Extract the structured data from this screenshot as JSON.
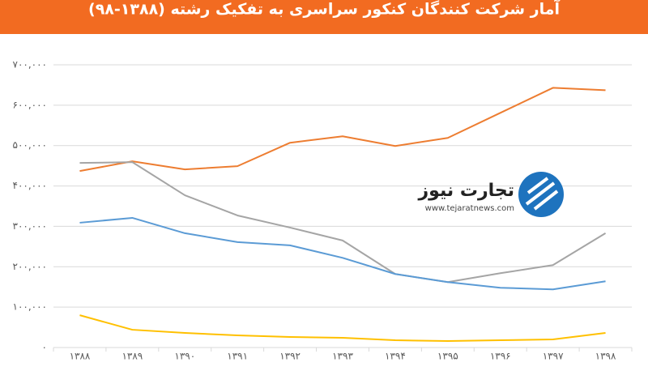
{
  "chart_data": {
    "type": "line",
    "title": "آمار شرکت کنندگان کنکور سراسری به تفکیک رشته (۱۳۸۸-۹۸)",
    "watermark": {
      "brand": "تجارت نیوز",
      "url": "www.tejaratnews.com"
    },
    "categories": [
      "۱۳۸۸",
      "۱۳۸۹",
      "۱۳۹۰",
      "۱۳۹۱",
      "۱۳۹۲",
      "۱۳۹۳",
      "۱۳۹۴",
      "۱۳۹۵",
      "۱۳۹۶",
      "۱۳۹۷",
      "۱۳۹۸"
    ],
    "series": [
      {
        "color": "#ed7d31",
        "values": [
          437000,
          461000,
          441000,
          449000,
          507000,
          523000,
          499000,
          519000,
          581000,
          643000,
          637000
        ]
      },
      {
        "color": "#a5a5a5",
        "values": [
          457000,
          459000,
          377000,
          327000,
          297000,
          265000,
          182000,
          162000,
          184000,
          204000,
          283000
        ]
      },
      {
        "color": "#5b9bd5",
        "values": [
          309000,
          321000,
          283000,
          261000,
          253000,
          222000,
          182000,
          162000,
          148000,
          144000,
          164000
        ]
      },
      {
        "color": "#ffc000",
        "values": [
          80000,
          44000,
          36000,
          30000,
          26000,
          24000,
          18000,
          16000,
          18000,
          20000,
          36000
        ]
      }
    ],
    "ylim": [
      0,
      700000
    ],
    "yticks": [
      {
        "value": 0,
        "label": "۰"
      },
      {
        "value": 100000,
        "label": "۱۰۰,۰۰۰"
      },
      {
        "value": 200000,
        "label": "۲۰۰,۰۰۰"
      },
      {
        "value": 300000,
        "label": "۳۰۰,۰۰۰"
      },
      {
        "value": 400000,
        "label": "۴۰۰,۰۰۰"
      },
      {
        "value": 500000,
        "label": "۵۰۰,۰۰۰"
      },
      {
        "value": 600000,
        "label": "۶۰۰,۰۰۰"
      },
      {
        "value": 700000,
        "label": "۷۰۰,۰۰۰"
      }
    ],
    "grid": true
  }
}
